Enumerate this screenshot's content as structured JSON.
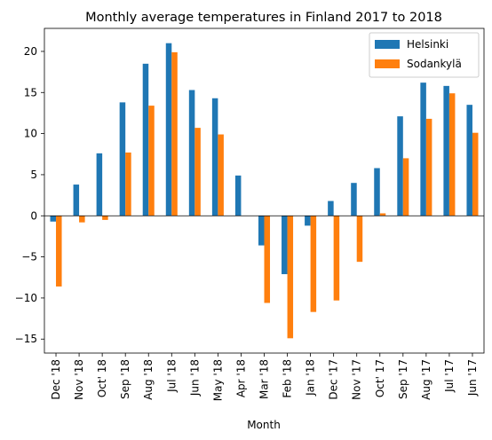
{
  "chart_data": {
    "type": "bar",
    "title": "Monthly average temperatures in Finland 2017 to 2018",
    "xlabel": "Month",
    "ylabel": "",
    "categories": [
      "Dec '18",
      "Nov '18",
      "Oct' 18",
      "Sep '18",
      "Aug '18",
      "Jul '18",
      "Jun '18",
      "May '18",
      "Apr '18",
      "Mar '18",
      "Feb '18",
      "Jan '18",
      "Dec '17",
      "Nov '17",
      "Oct' 17",
      "Sep '17",
      "Aug '17",
      "Jul '17",
      "Jun '17"
    ],
    "series": [
      {
        "name": "Helsinki",
        "color": "#1f77b4",
        "values": [
          -0.7,
          3.8,
          7.6,
          13.8,
          18.5,
          21.0,
          15.3,
          14.3,
          4.9,
          -3.6,
          -7.1,
          -1.2,
          1.8,
          4.0,
          5.8,
          12.1,
          16.2,
          15.8,
          13.5
        ]
      },
      {
        "name": "Sodankylä",
        "color": "#ff7f0e",
        "values": [
          -8.6,
          -0.8,
          -0.5,
          7.7,
          13.4,
          19.9,
          10.7,
          9.9,
          null,
          -10.6,
          -14.9,
          -11.7,
          -10.3,
          -5.6,
          0.3,
          7.0,
          11.8,
          14.9,
          10.1
        ]
      }
    ],
    "yticks": [
      -15,
      -10,
      -5,
      0,
      5,
      10,
      15,
      20
    ],
    "ylim": [
      -16.7,
      22.8
    ],
    "grid": false,
    "legend_position": "top-right"
  }
}
